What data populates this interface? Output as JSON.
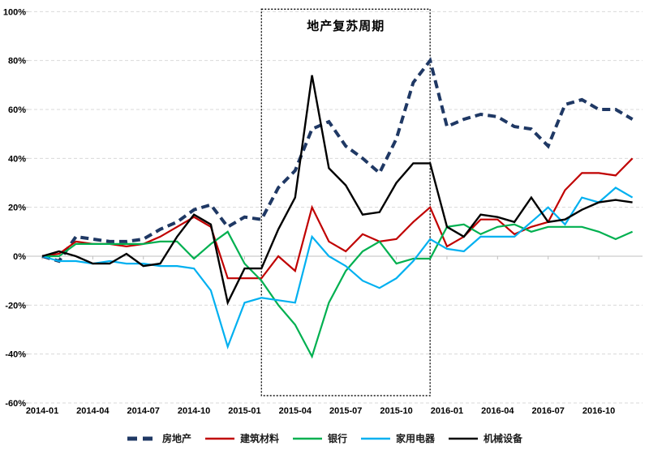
{
  "chart_data": {
    "type": "line",
    "title": "",
    "x": [
      "2014-01",
      "2014-02",
      "2014-03",
      "2014-04",
      "2014-05",
      "2014-06",
      "2014-07",
      "2014-08",
      "2014-09",
      "2014-10",
      "2014-11",
      "2014-12",
      "2015-01",
      "2015-02",
      "2015-03",
      "2015-04",
      "2015-05",
      "2015-06",
      "2015-07",
      "2015-08",
      "2015-09",
      "2015-10",
      "2015-11",
      "2015-12",
      "2016-01",
      "2016-02",
      "2016-03",
      "2016-04",
      "2016-05",
      "2016-06",
      "2016-07",
      "2016-08",
      "2016-09",
      "2016-10",
      "2016-11",
      "2016-12"
    ],
    "x_tick_step": 3,
    "x_tick_labels": [
      "2014-01",
      "2014-04",
      "2014-07",
      "2014-10",
      "2015-01",
      "2015-04",
      "2015-07",
      "2015-10",
      "2016-01",
      "2016-04",
      "2016-07",
      "2016-10"
    ],
    "y_axis": {
      "min": -60,
      "max": 100,
      "step": 20,
      "unit": "%",
      "tick_labels": [
        "100%",
        "80%",
        "60%",
        "40%",
        "20%",
        "0%",
        "-20%",
        "-40%",
        "-60%"
      ]
    },
    "grid": {
      "line_color": "#D9D9D9",
      "axis_color": "#BFBFBF",
      "dashed": true
    },
    "legend_position": "bottom",
    "series": [
      {
        "key": "real-estate",
        "name": "房地产",
        "color": "#1F3864",
        "style": "dashed",
        "width": 4,
        "values": [
          0,
          -2,
          8,
          7,
          6,
          6,
          7,
          11,
          14,
          19,
          21,
          12,
          16,
          15,
          28,
          35,
          52,
          55,
          45,
          40,
          34,
          48,
          71,
          80,
          53,
          56,
          58,
          57,
          53,
          52,
          45,
          62,
          64,
          60,
          60,
          56
        ]
      },
      {
        "key": "building-materials",
        "name": "建筑材料",
        "color": "#C00000",
        "style": "solid",
        "width": 2.2,
        "values": [
          0,
          1,
          6,
          5,
          5,
          4,
          5,
          8,
          12,
          16,
          12,
          -9,
          -9,
          -9,
          0,
          -6,
          20,
          6,
          2,
          9,
          6,
          7,
          14,
          20,
          4,
          8,
          15,
          15,
          9,
          12,
          14,
          27,
          34,
          34,
          33,
          40
        ]
      },
      {
        "key": "bank",
        "name": "银行",
        "color": "#00B050",
        "style": "solid",
        "width": 2.2,
        "values": [
          0,
          0,
          5,
          5,
          5,
          5,
          5,
          6,
          6,
          -1,
          5,
          10,
          -3,
          -10,
          -20,
          -28,
          -41,
          -19,
          -6,
          2,
          6,
          -3,
          -1,
          -1,
          12,
          13,
          9,
          12,
          13,
          10,
          12,
          12,
          12,
          10,
          7,
          10
        ]
      },
      {
        "key": "home-appliances",
        "name": "家用电器",
        "color": "#00B0F0",
        "style": "solid",
        "width": 2.2,
        "values": [
          0,
          -2,
          -2,
          -3,
          -2,
          -3,
          -3,
          -4,
          -4,
          -5,
          -14,
          -37,
          -19,
          -17,
          -18,
          -19,
          8,
          0,
          -4,
          -10,
          -13,
          -9,
          -2,
          7,
          3,
          2,
          8,
          8,
          8,
          14,
          20,
          13,
          24,
          22,
          28,
          24
        ]
      },
      {
        "key": "machinery",
        "name": "机械设备",
        "color": "#000000",
        "style": "solid",
        "width": 2.4,
        "values": [
          0,
          2,
          0,
          -3,
          -3,
          1,
          -4,
          -3,
          8,
          17,
          13,
          -19,
          -5,
          -5,
          11,
          24,
          74,
          36,
          29,
          17,
          18,
          30,
          38,
          38,
          12,
          8,
          17,
          16,
          14,
          24,
          14,
          15,
          19,
          22,
          23,
          22
        ]
      }
    ],
    "annotation_box": {
      "label": "地产复苏周期",
      "from_x": "2015-02",
      "to_x": "2015-12",
      "from_index": 13,
      "to_index": 23,
      "top_value": 101,
      "bottom_value": -57
    }
  }
}
